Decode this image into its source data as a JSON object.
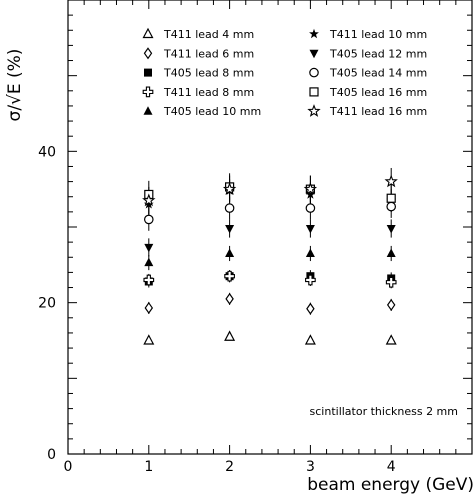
{
  "chart_data": {
    "type": "scatter",
    "title": "",
    "xlabel": "beam energy  (GeV)",
    "ylabel": "σ/√E (%)",
    "xlim": [
      0,
      5
    ],
    "ylim": [
      0,
      60
    ],
    "x_ticks": [
      "0",
      "1",
      "2",
      "3",
      "4"
    ],
    "y_ticks": [
      "0",
      "20",
      "40"
    ],
    "annotation": "scintillator thickness 2 mm",
    "grid": false,
    "legend_placement": "top",
    "series": [
      {
        "name": "T411 lead 4 mm",
        "marker": "triangle-open",
        "x": [
          1,
          2,
          3,
          4
        ],
        "y": [
          15.0,
          15.5,
          15.0,
          15.0
        ],
        "err": [
          0.5,
          0.5,
          0.5,
          0.5
        ]
      },
      {
        "name": "T411 lead 6 mm",
        "marker": "diamond-open",
        "x": [
          1,
          2,
          3,
          4
        ],
        "y": [
          19.3,
          20.5,
          19.2,
          19.7
        ],
        "err": [
          0.8,
          0.8,
          0.8,
          0.8
        ]
      },
      {
        "name": "T405 lead 8 mm",
        "marker": "square-filled",
        "x": [
          1,
          2,
          3,
          4
        ],
        "y": [
          22.8,
          23.5,
          23.5,
          23.2
        ],
        "err": [
          0.8,
          0.8,
          0.8,
          0.8
        ]
      },
      {
        "name": "T411 lead 8 mm",
        "marker": "cross-open",
        "x": [
          1,
          2,
          3,
          4
        ],
        "y": [
          23.0,
          23.5,
          23.0,
          22.7
        ],
        "err": [
          0.8,
          0.8,
          0.8,
          0.8
        ]
      },
      {
        "name": "T405 lead 10 mm",
        "marker": "triangle-filled",
        "x": [
          1,
          2,
          3,
          4
        ],
        "y": [
          25.3,
          26.5,
          26.5,
          26.5
        ],
        "err": [
          1.0,
          1.0,
          1.0,
          1.0
        ]
      },
      {
        "name": "T411 lead 10 mm",
        "marker": "star-filled",
        "x": [
          1,
          2,
          3,
          4
        ],
        "y": [
          33.0,
          34.8,
          34.3,
          33.5
        ],
        "err": [
          1.5,
          1.5,
          1.5,
          1.5
        ]
      },
      {
        "name": "T405 lead 12 mm",
        "marker": "tri-down-filled",
        "x": [
          1,
          2,
          3,
          4
        ],
        "y": [
          27.3,
          29.8,
          29.8,
          29.8
        ],
        "err": [
          1.2,
          1.2,
          1.2,
          1.2
        ]
      },
      {
        "name": "T405 lead 14 mm",
        "marker": "circle-open",
        "x": [
          1,
          2,
          3,
          4
        ],
        "y": [
          31.0,
          32.5,
          32.5,
          32.7
        ],
        "err": [
          1.5,
          1.5,
          1.5,
          1.5
        ]
      },
      {
        "name": "T405 lead 16 mm",
        "marker": "square-open",
        "x": [
          1,
          2,
          3,
          4
        ],
        "y": [
          34.3,
          35.3,
          35.0,
          33.8
        ],
        "err": [
          1.8,
          1.8,
          1.8,
          1.8
        ]
      },
      {
        "name": "T411 lead 16 mm",
        "marker": "star-open",
        "x": [
          1,
          2,
          3,
          4
        ],
        "y": [
          33.5,
          35.0,
          35.0,
          36.0
        ],
        "err": [
          1.8,
          1.8,
          1.8,
          1.8
        ]
      }
    ]
  }
}
